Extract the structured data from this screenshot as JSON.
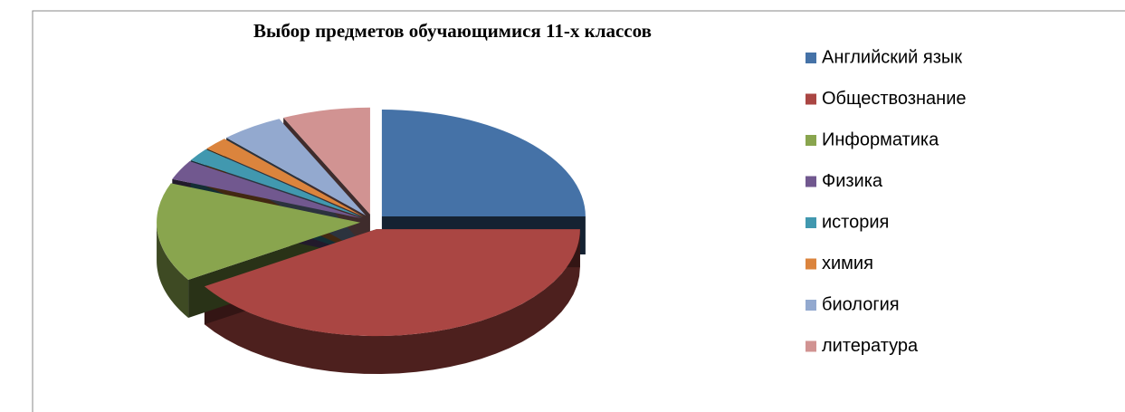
{
  "chart_data": {
    "type": "pie3d",
    "title": "Выбор предметов обучающимися 11-х классов",
    "categories": [
      "Английский язык",
      "Обществознание",
      "Информатика",
      "Физика",
      "история",
      "химия",
      "биология",
      "литература"
    ],
    "values": [
      25,
      41,
      15,
      3,
      2,
      2,
      5,
      7
    ],
    "colors": [
      "#4572A7",
      "#AA4643",
      "#89A54E",
      "#71588F",
      "#4198AF",
      "#DB843D",
      "#93A9CF",
      "#D19392"
    ],
    "legend": "right"
  }
}
